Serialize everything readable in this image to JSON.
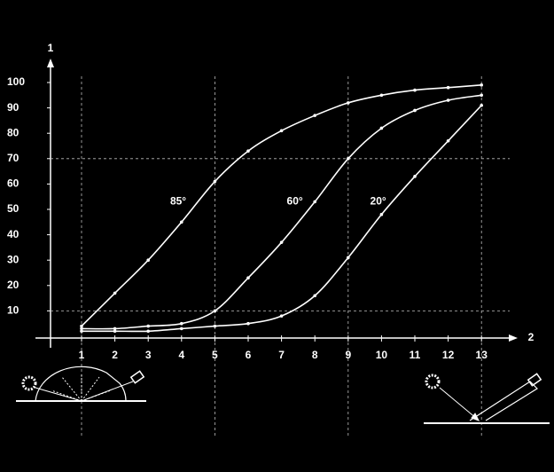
{
  "chart_data": {
    "type": "line",
    "y_label": "1",
    "x_label": "2",
    "x": [
      1,
      2,
      3,
      4,
      5,
      6,
      7,
      8,
      9,
      10,
      11,
      12,
      13
    ],
    "series": [
      {
        "name": "85°",
        "color": "#ffffff",
        "values": [
          4,
          17,
          30,
          45,
          61,
          73,
          81,
          87,
          92,
          95,
          97,
          98,
          99
        ]
      },
      {
        "name": "60°",
        "color": "#ffffff",
        "values": [
          3,
          3,
          4,
          5,
          10,
          23,
          37,
          53,
          70,
          82,
          89,
          93,
          95
        ]
      },
      {
        "name": "20°",
        "color": "#ffffff",
        "values": [
          2,
          2,
          2,
          3,
          4,
          5,
          8,
          16,
          31,
          48,
          63,
          77,
          91
        ]
      }
    ],
    "xlim": [
      0,
      14
    ],
    "ylim": [
      0,
      100
    ],
    "xticks": [
      1,
      2,
      3,
      4,
      5,
      6,
      7,
      8,
      9,
      10,
      11,
      12,
      13
    ],
    "yticks": [
      10,
      20,
      30,
      40,
      50,
      60,
      70,
      80,
      90,
      100
    ],
    "xgrid": [
      1,
      5,
      9,
      13
    ],
    "ygrid": [
      10,
      70
    ],
    "grid": true
  }
}
